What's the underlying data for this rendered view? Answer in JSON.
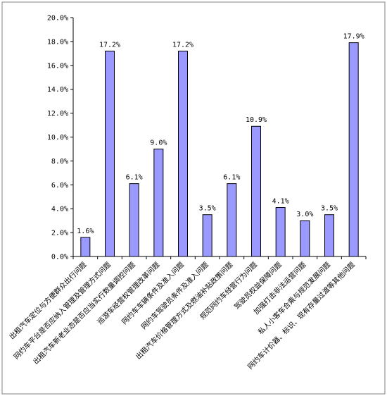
{
  "chart_data": {
    "type": "bar",
    "title": "",
    "xlabel": "",
    "ylabel": "",
    "ylim": [
      0,
      20
    ],
    "yticks": [
      "0.0%",
      "2.0%",
      "4.0%",
      "6.0%",
      "8.0%",
      "10.0%",
      "12.0%",
      "14.0%",
      "16.0%",
      "18.0%",
      "20.0%"
    ],
    "grid": false,
    "legend": "none",
    "bar_color": "#9999ff",
    "categories": [
      "出租汽车定位与方便群众出行问题",
      "网约车平台是否应纳入管理及管理方式问题",
      "出租汽车新老业态是否应当实行数量调控问题",
      "巡游车经营权管理改革问题",
      "网约车车辆条件及准入问题",
      "网约车驾驶员条件及准入问题",
      "出租汽车价格管理方式及燃油补贴政策问题",
      "规范网约车经营行为问题",
      "驾驶员权益保障问题",
      "加强打击非法运营问题",
      "私人小客车合乘与规范发展问题",
      "网约车计价器、标识、现有存量过渡等其他问题"
    ],
    "values": [
      1.6,
      17.2,
      6.1,
      9.0,
      17.2,
      3.5,
      6.1,
      10.9,
      4.1,
      3.0,
      3.5,
      17.9
    ],
    "data_labels": [
      "1.6%",
      "17.2%",
      "6.1%",
      "9.0%",
      "17.2%",
      "3.5%",
      "6.1%",
      "10.9%",
      "4.1%",
      "3.0%",
      "3.5%",
      "17.9%"
    ]
  }
}
